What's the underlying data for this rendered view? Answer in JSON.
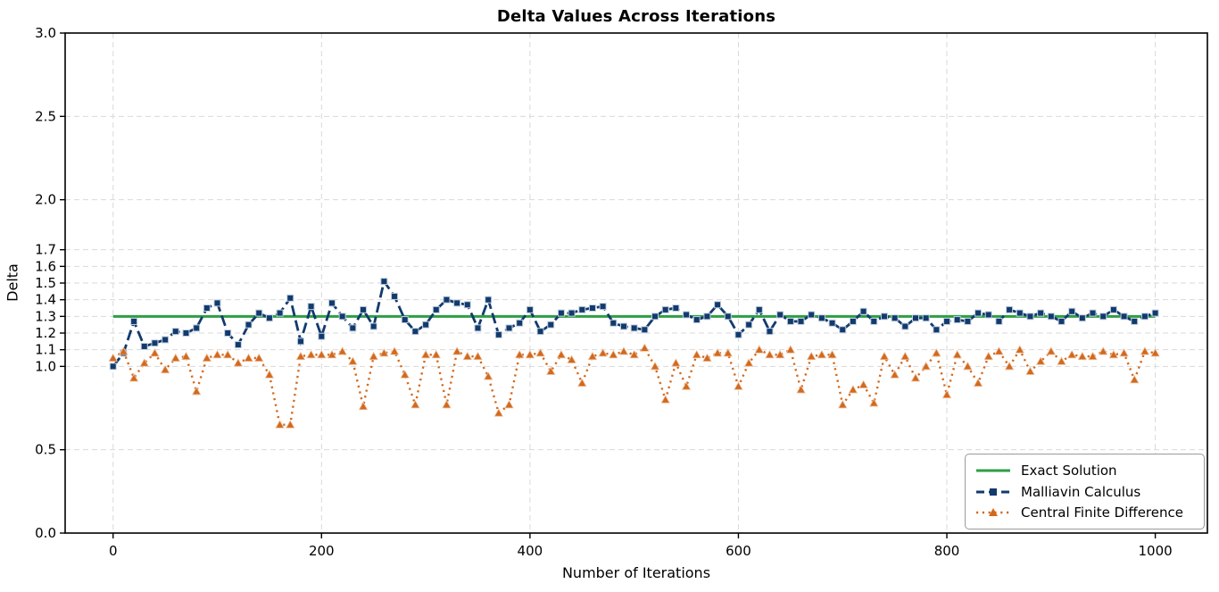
{
  "colors": {
    "exact_green": "#2e9e44",
    "malliavin_navy": "#123a6d",
    "cfd_orange": "#d2691e",
    "grid_gray": "#d9d9d9",
    "text_black": "#000000"
  },
  "legend": {
    "items": [
      {
        "label": "Exact Solution"
      },
      {
        "label": "Malliavin Calculus"
      },
      {
        "label": "Central Finite Difference"
      }
    ]
  },
  "chart_data": {
    "type": "line",
    "title": "Delta Values Across Iterations",
    "xlabel": "Number of Iterations",
    "ylabel": "Delta",
    "xlim": [
      -46,
      1050
    ],
    "ylim": [
      0.0,
      3.0
    ],
    "xticks": [
      0,
      200,
      400,
      600,
      800,
      1000
    ],
    "yticks": [
      0.0,
      0.5,
      1.0,
      1.1,
      1.2,
      1.3,
      1.4,
      1.5,
      1.6,
      1.7,
      2.0,
      2.5,
      3.0
    ],
    "grid": true,
    "legend_position": "lower right",
    "exact_value": 1.3,
    "x": [
      0,
      10,
      20,
      30,
      40,
      50,
      60,
      70,
      80,
      90,
      100,
      110,
      120,
      130,
      140,
      150,
      160,
      170,
      180,
      190,
      200,
      210,
      220,
      230,
      240,
      250,
      260,
      270,
      280,
      290,
      300,
      310,
      320,
      330,
      340,
      350,
      360,
      370,
      380,
      390,
      400,
      410,
      420,
      430,
      440,
      450,
      460,
      470,
      480,
      490,
      500,
      510,
      520,
      530,
      540,
      550,
      560,
      570,
      580,
      590,
      600,
      610,
      620,
      630,
      640,
      650,
      660,
      670,
      680,
      690,
      700,
      710,
      720,
      730,
      740,
      750,
      760,
      770,
      780,
      790,
      800,
      810,
      820,
      830,
      840,
      850,
      860,
      870,
      880,
      890,
      900,
      910,
      920,
      930,
      940,
      950,
      960,
      970,
      980,
      990,
      1000
    ],
    "series": [
      {
        "name": "Exact Solution",
        "style": "solid-green",
        "values_constant": 1.3
      },
      {
        "name": "Malliavin Calculus",
        "style": "dashed-navy-squares",
        "values": [
          1.0,
          1.08,
          1.27,
          1.12,
          1.14,
          1.16,
          1.21,
          1.2,
          1.23,
          1.35,
          1.38,
          1.2,
          1.13,
          1.25,
          1.32,
          1.29,
          1.32,
          1.41,
          1.15,
          1.36,
          1.18,
          1.38,
          1.3,
          1.23,
          1.34,
          1.24,
          1.51,
          1.42,
          1.28,
          1.21,
          1.25,
          1.34,
          1.4,
          1.38,
          1.37,
          1.23,
          1.4,
          1.19,
          1.23,
          1.26,
          1.34,
          1.21,
          1.25,
          1.32,
          1.32,
          1.34,
          1.35,
          1.36,
          1.26,
          1.24,
          1.23,
          1.22,
          1.3,
          1.34,
          1.35,
          1.31,
          1.28,
          1.3,
          1.37,
          1.3,
          1.19,
          1.25,
          1.34,
          1.21,
          1.31,
          1.27,
          1.27,
          1.31,
          1.29,
          1.26,
          1.22,
          1.27,
          1.33,
          1.27,
          1.3,
          1.29,
          1.24,
          1.29,
          1.29,
          1.22,
          1.27,
          1.28,
          1.27,
          1.32,
          1.31,
          1.27,
          1.34,
          1.32,
          1.3,
          1.32,
          1.3,
          1.27,
          1.33,
          1.29,
          1.32,
          1.3,
          1.34,
          1.3,
          1.27,
          1.3,
          1.32
        ]
      },
      {
        "name": "Central Finite Difference",
        "style": "dotted-orange-triangles",
        "values": [
          1.05,
          1.09,
          0.93,
          1.02,
          1.08,
          0.98,
          1.05,
          1.06,
          0.85,
          1.05,
          1.07,
          1.07,
          1.02,
          1.05,
          1.05,
          0.95,
          0.65,
          0.65,
          1.06,
          1.07,
          1.07,
          1.07,
          1.09,
          1.03,
          0.76,
          1.06,
          1.08,
          1.09,
          0.95,
          0.77,
          1.07,
          1.07,
          0.77,
          1.09,
          1.06,
          1.06,
          0.94,
          0.72,
          0.77,
          1.07,
          1.07,
          1.08,
          0.97,
          1.07,
          1.04,
          0.9,
          1.06,
          1.08,
          1.07,
          1.09,
          1.07,
          1.11,
          1.0,
          0.8,
          1.02,
          0.88,
          1.07,
          1.05,
          1.08,
          1.08,
          0.88,
          1.02,
          1.1,
          1.07,
          1.07,
          1.1,
          0.86,
          1.06,
          1.07,
          1.07,
          0.77,
          0.86,
          0.89,
          0.78,
          1.06,
          0.95,
          1.06,
          0.93,
          1.0,
          1.08,
          0.83,
          1.07,
          1.0,
          0.9,
          1.06,
          1.09,
          1.0,
          1.1,
          0.97,
          1.03,
          1.09,
          1.03,
          1.07,
          1.06,
          1.06,
          1.09,
          1.07,
          1.08,
          0.92,
          1.09,
          1.08
        ]
      }
    ]
  }
}
